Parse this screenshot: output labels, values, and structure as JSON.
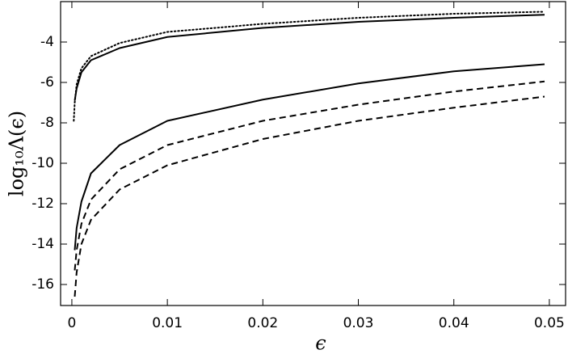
{
  "chart_data": {
    "type": "line",
    "x_label": "ϵ",
    "y_label": "log₁₀Λ(ϵ)",
    "x": [
      0.0002,
      0.0003,
      0.0005,
      0.001,
      0.002,
      0.005,
      0.01,
      0.02,
      0.03,
      0.04,
      0.0495
    ],
    "series": [
      {
        "color": "#000000",
        "dash": "dotted",
        "values": [
          -7.9,
          -7.0,
          -6.1,
          -5.3,
          -4.7,
          -4.05,
          -3.5,
          -3.1,
          -2.8,
          -2.6,
          -2.5
        ]
      },
      {
        "color": "#000000",
        "dash": "solid",
        "values": [
          null,
          -6.9,
          -6.3,
          -5.5,
          -4.9,
          -4.3,
          -3.75,
          -3.3,
          -3.0,
          -2.8,
          -2.65
        ]
      },
      {
        "color": "#000000",
        "dash": "solid",
        "values": [
          null,
          -14.3,
          -13.2,
          -11.9,
          -10.5,
          -9.1,
          -7.9,
          -6.85,
          -6.05,
          -5.45,
          -5.1
        ]
      },
      {
        "color": "#000000",
        "dash": "dashed",
        "values": [
          null,
          -15.3,
          -14.3,
          -13.0,
          -11.8,
          -10.3,
          -9.1,
          -7.9,
          -7.1,
          -6.45,
          -5.95
        ]
      },
      {
        "color": "#000000",
        "dash": "dashed",
        "values": [
          null,
          -16.6,
          -15.4,
          -14.0,
          -12.8,
          -11.3,
          -10.1,
          -8.8,
          -7.9,
          -7.25,
          -6.7
        ]
      }
    ],
    "xlim": [
      -0.00118,
      0.0517
    ],
    "ylim": [
      -17.04,
      -2
    ],
    "xticks": [
      0,
      0.01,
      0.02,
      0.03,
      0.04,
      0.05
    ],
    "yticks": [
      -16,
      -14,
      -12,
      -10,
      -8,
      -6,
      -4
    ]
  }
}
